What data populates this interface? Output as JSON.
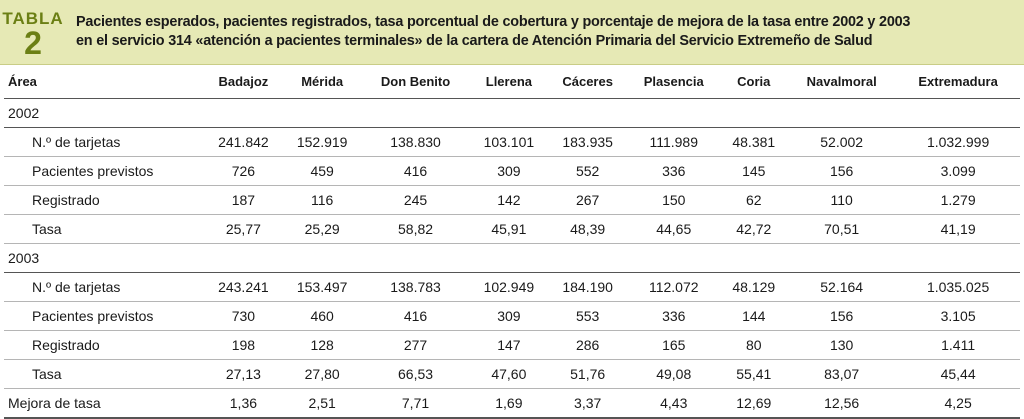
{
  "badge": {
    "label": "TABLA",
    "number": "2"
  },
  "title": {
    "line1": "Pacientes esperados, pacientes registrados, tasa porcentual de cobertura y porcentaje de mejora de la tasa entre 2002 y 2003",
    "line2": "en el servicio 314 «atención a pacientes terminales» de la cartera de Atención Primaria del Servicio Extremeño de Salud"
  },
  "columns": [
    "Área",
    "Badajoz",
    "Mérida",
    "Don Benito",
    "Llerena",
    "Cáceres",
    "Plasencia",
    "Coria",
    "Navalmoral",
    "Extremadura"
  ],
  "year2002": {
    "label": "2002",
    "rows": [
      {
        "label": "N.º de tarjetas",
        "values": [
          "241.842",
          "152.919",
          "138.830",
          "103.101",
          "183.935",
          "111.989",
          "48.381",
          "52.002",
          "1.032.999"
        ]
      },
      {
        "label": "Pacientes previstos",
        "values": [
          "726",
          "459",
          "416",
          "309",
          "552",
          "336",
          "145",
          "156",
          "3.099"
        ]
      },
      {
        "label": "Registrado",
        "values": [
          "187",
          "116",
          "245",
          "142",
          "267",
          "150",
          "62",
          "110",
          "1.279"
        ]
      },
      {
        "label": "Tasa",
        "values": [
          "25,77",
          "25,29",
          "58,82",
          "45,91",
          "48,39",
          "44,65",
          "42,72",
          "70,51",
          "41,19"
        ]
      }
    ]
  },
  "year2003": {
    "label": "2003",
    "rows": [
      {
        "label": "N.º de tarjetas",
        "values": [
          "243.241",
          "153.497",
          "138.783",
          "102.949",
          "184.190",
          "112.072",
          "48.129",
          "52.164",
          "1.035.025"
        ]
      },
      {
        "label": "Pacientes previstos",
        "values": [
          "730",
          "460",
          "416",
          "309",
          "553",
          "336",
          "144",
          "156",
          "3.105"
        ]
      },
      {
        "label": "Registrado",
        "values": [
          "198",
          "128",
          "277",
          "147",
          "286",
          "165",
          "80",
          "130",
          "1.411"
        ]
      },
      {
        "label": "Tasa",
        "values": [
          "27,13",
          "27,80",
          "66,53",
          "47,60",
          "51,76",
          "49,08",
          "55,41",
          "83,07",
          "45,44"
        ]
      }
    ]
  },
  "mejora": {
    "label": "Mejora de tasa",
    "values": [
      "1,36",
      "2,51",
      "7,71",
      "1,69",
      "3,37",
      "4,43",
      "12,69",
      "12,56",
      "4,25"
    ]
  }
}
